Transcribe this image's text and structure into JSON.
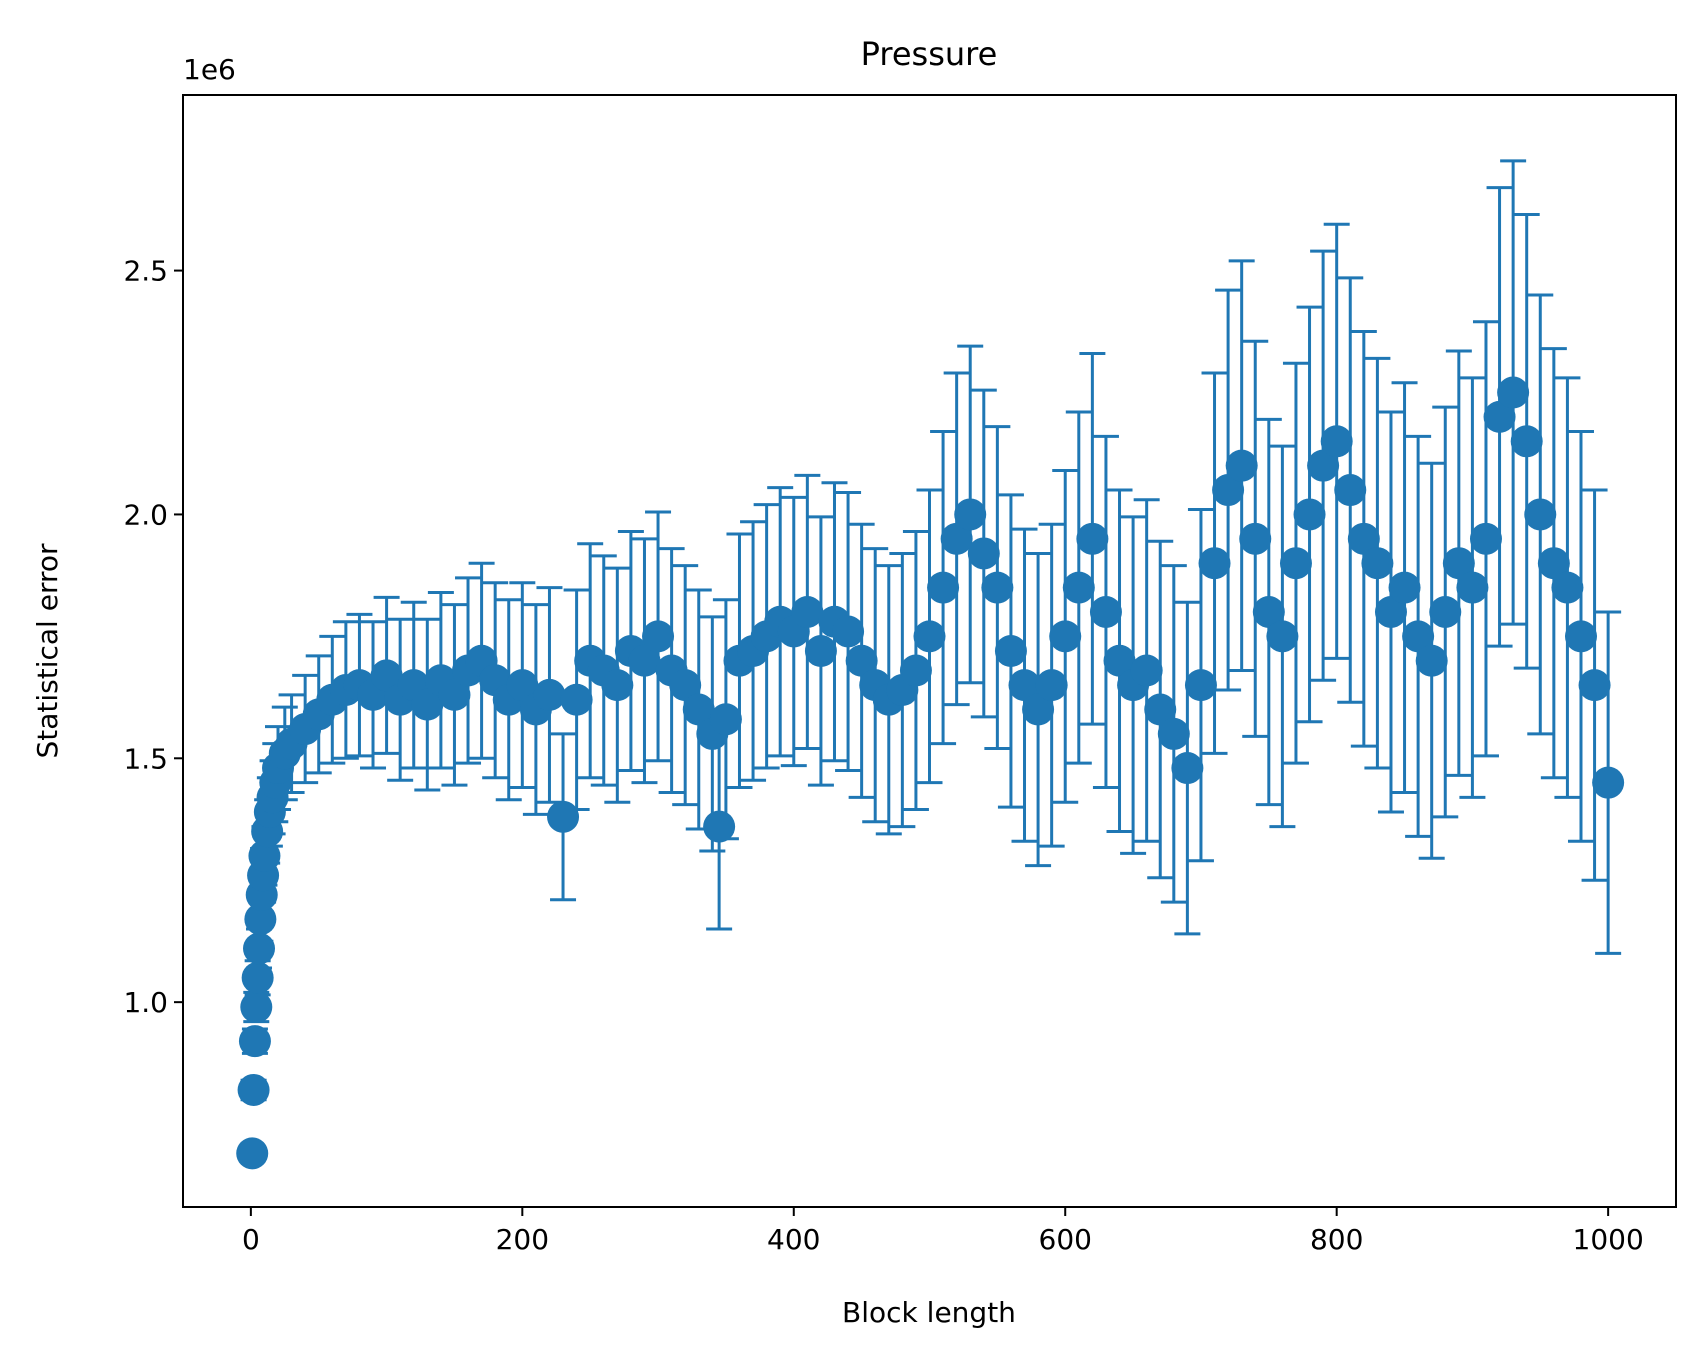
{
  "chart_data": {
    "type": "scatter",
    "title": "Pressure",
    "xlabel": "Block length",
    "ylabel": "Statistical error",
    "y_offset_text": "1e6",
    "y_scale_factor": 1000000,
    "xlim": [
      -50,
      1050
    ],
    "ylim": [
      580000,
      2860000
    ],
    "xticks": [
      0,
      200,
      400,
      600,
      800,
      1000
    ],
    "yticks": [
      1.0,
      1.5,
      2.0,
      2.5
    ],
    "ytick_labels": [
      "1.0",
      "1.5",
      "2.0",
      "2.5"
    ],
    "grid": false,
    "legend": "none",
    "color": "#1f77b4",
    "series": [
      {
        "x": [
          1,
          2,
          3,
          4,
          5,
          6,
          7,
          8,
          9,
          10,
          12,
          14,
          16,
          18,
          20,
          25,
          30,
          40,
          50,
          60,
          70,
          80,
          90,
          100,
          110,
          120,
          130,
          140,
          150,
          160,
          170,
          180,
          190,
          200,
          210,
          220,
          230,
          240,
          250,
          260,
          270,
          280,
          290,
          300,
          310,
          320,
          330,
          340,
          345,
          350,
          360,
          370,
          380,
          390,
          400,
          410,
          420,
          430,
          440,
          450,
          460,
          470,
          480,
          490,
          500,
          510,
          520,
          530,
          540,
          550,
          560,
          570,
          580,
          590,
          600,
          610,
          620,
          630,
          640,
          650,
          660,
          670,
          680,
          690,
          700,
          710,
          720,
          730,
          740,
          750,
          760,
          770,
          780,
          790,
          800,
          810,
          820,
          830,
          840,
          850,
          860,
          870,
          880,
          890,
          900,
          910,
          920,
          930,
          940,
          950,
          960,
          970,
          980,
          990,
          1000
        ],
        "y": [
          690000,
          820000,
          920000,
          990000,
          1050000,
          1110000,
          1170000,
          1220000,
          1260000,
          1300000,
          1350000,
          1390000,
          1420000,
          1450000,
          1480000,
          1510000,
          1530000,
          1560000,
          1590000,
          1620000,
          1640000,
          1650000,
          1630000,
          1670000,
          1620000,
          1650000,
          1610000,
          1660000,
          1630000,
          1680000,
          1700000,
          1660000,
          1620000,
          1650000,
          1600000,
          1630000,
          1380000,
          1620000,
          1700000,
          1680000,
          1650000,
          1720000,
          1700000,
          1750000,
          1680000,
          1650000,
          1600000,
          1550000,
          1360000,
          1580000,
          1700000,
          1720000,
          1750000,
          1780000,
          1760000,
          1800000,
          1720000,
          1780000,
          1760000,
          1700000,
          1650000,
          1620000,
          1640000,
          1680000,
          1750000,
          1850000,
          1950000,
          2000000,
          1920000,
          1850000,
          1720000,
          1650000,
          1600000,
          1650000,
          1750000,
          1850000,
          1950000,
          1800000,
          1700000,
          1650000,
          1680000,
          1600000,
          1550000,
          1480000,
          1650000,
          1900000,
          2050000,
          2100000,
          1950000,
          1800000,
          1750000,
          1900000,
          2000000,
          2100000,
          2150000,
          2050000,
          1950000,
          1900000,
          1800000,
          1850000,
          1750000,
          1700000,
          1800000,
          1900000,
          1850000,
          1950000,
          2200000,
          2250000,
          2150000,
          2000000,
          1900000,
          1850000,
          1750000,
          1650000,
          1450000
        ],
        "yerr": [
          15000,
          20000,
          25000,
          30000,
          35000,
          40000,
          45000,
          50000,
          55000,
          60000,
          65000,
          70000,
          75000,
          80000,
          85000,
          95000,
          100000,
          110000,
          120000,
          130000,
          140000,
          145000,
          150000,
          160000,
          165000,
          170000,
          175000,
          180000,
          185000,
          190000,
          200000,
          200000,
          205000,
          210000,
          215000,
          220000,
          170000,
          225000,
          240000,
          235000,
          240000,
          245000,
          250000,
          255000,
          250000,
          245000,
          245000,
          240000,
          210000,
          245000,
          260000,
          265000,
          270000,
          275000,
          275000,
          280000,
          275000,
          285000,
          285000,
          280000,
          280000,
          275000,
          280000,
          285000,
          300000,
          320000,
          340000,
          345000,
          335000,
          330000,
          320000,
          320000,
          320000,
          330000,
          340000,
          360000,
          380000,
          360000,
          350000,
          345000,
          350000,
          345000,
          345000,
          340000,
          360000,
          390000,
          410000,
          420000,
          405000,
          395000,
          390000,
          410000,
          425000,
          440000,
          445000,
          435000,
          425000,
          420000,
          410000,
          420000,
          410000,
          405000,
          420000,
          435000,
          430000,
          445000,
          470000,
          475000,
          465000,
          450000,
          440000,
          430000,
          420000,
          400000,
          350000
        ]
      }
    ]
  }
}
